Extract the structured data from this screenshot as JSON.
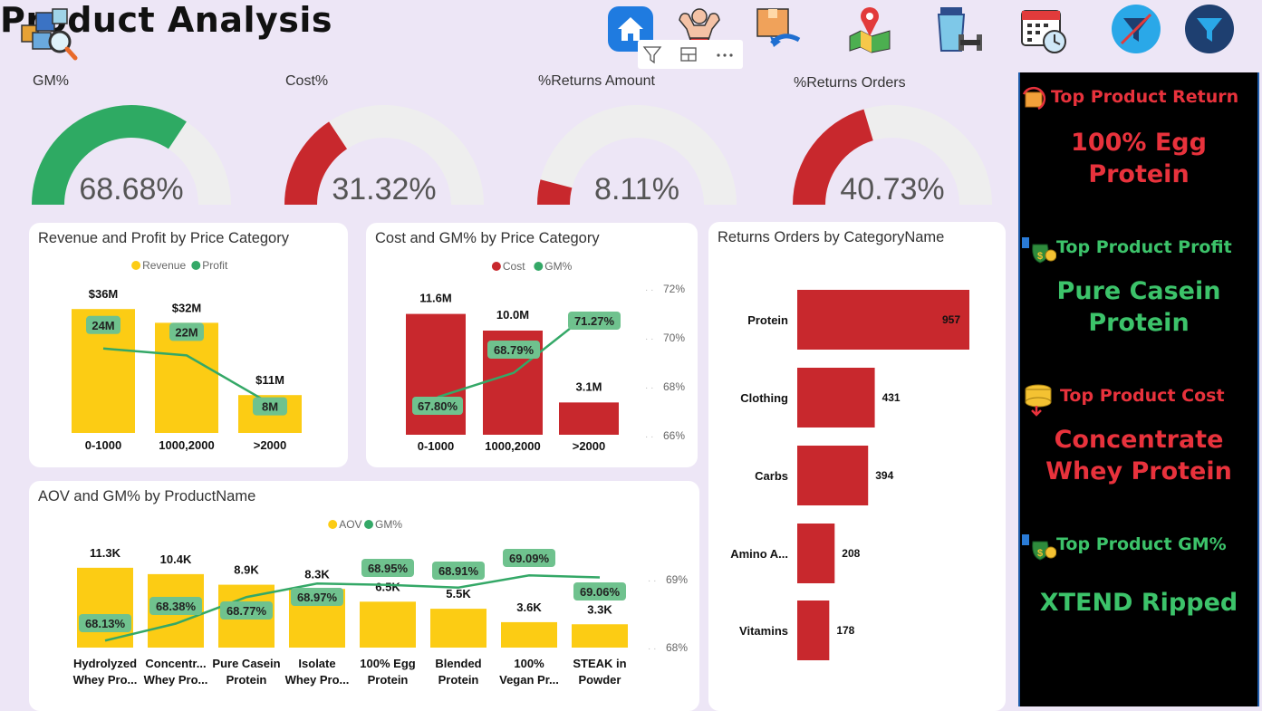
{
  "header": {
    "title": "Product Analysis"
  },
  "nav": [
    "home-icon",
    "bodybuilder-icon",
    "product-return-icon",
    "map-icon",
    "shaker-dumbbell-icon",
    "calendar-clock-icon",
    "clear-filter-icon",
    "filter-icon"
  ],
  "visual_header_icons": [
    "funnel-icon",
    "focus-mode-icon",
    "more-options-icon"
  ],
  "colors": {
    "green": "#2eaa63",
    "red": "#c8282d",
    "yellow": "#fccc14",
    "track": "#eeeeee",
    "line": "#34a867",
    "label_bg": "#6fc28e"
  },
  "kpis": [
    {
      "label": "GM%",
      "value": "68.68%",
      "fraction": 0.6868,
      "color": "#2eaa63"
    },
    {
      "label": "Cost%",
      "value": "31.32%",
      "fraction": 0.3132,
      "color": "#c8282d"
    },
    {
      "label": "%Returns Amount",
      "value": "8.11%",
      "fraction": 0.0811,
      "color": "#c8282d"
    },
    {
      "label": "%Returns Orders",
      "value": "40.73%",
      "fraction": 0.4073,
      "color": "#c8282d"
    }
  ],
  "sidebar": [
    {
      "heading": "Top Product Return",
      "value_lines": [
        "100% Egg",
        "Protein"
      ],
      "heading_color": "#e8323c",
      "value_color": "#e8323c",
      "icon": "box-return-icon"
    },
    {
      "heading": "Top Product Profit",
      "value_lines": [
        "Pure Casein",
        "Protein"
      ],
      "heading_color": "#3cc36a",
      "value_color": "#3cc36a",
      "icon": "money-bag-icon"
    },
    {
      "heading": "Top Product Cost",
      "value_lines": [
        "Concentrate",
        "Whey Protein"
      ],
      "heading_color": "#e8323c",
      "value_color": "#e8323c",
      "icon": "coin-stack-icon"
    },
    {
      "heading": "Top Product GM%",
      "value_lines": [
        "XTEND Ripped"
      ],
      "heading_color": "#3cc36a",
      "value_color": "#3cc36a",
      "icon": "money-bag-icon"
    }
  ],
  "chart_data": [
    {
      "type": "bar",
      "title": "Revenue and Profit by Price Category",
      "categories": [
        "0-1000",
        "1000,2000",
        ">2000"
      ],
      "series": [
        {
          "name": "Revenue",
          "kind": "bar",
          "values": [
            36,
            32,
            11
          ],
          "labels": [
            "$36M",
            "$32M",
            "$11M"
          ],
          "color": "#fccc14"
        },
        {
          "name": "Profit",
          "kind": "line",
          "values": [
            24,
            22,
            8
          ],
          "labels": [
            "24M",
            "22M",
            "8M"
          ],
          "color": "#34a867"
        }
      ],
      "legend": "top-center"
    },
    {
      "type": "bar",
      "title": "Cost and GM% by Price Category",
      "categories": [
        "0-1000",
        "1000,2000",
        ">2000"
      ],
      "series": [
        {
          "name": "Cost",
          "kind": "bar",
          "values": [
            11.6,
            10.0,
            3.1
          ],
          "labels": [
            "11.6M",
            "10.0M",
            "3.1M"
          ],
          "color": "#c8282d"
        },
        {
          "name": "GM%",
          "kind": "line",
          "values": [
            67.8,
            68.79,
            71.27
          ],
          "labels": [
            "67.80%",
            "68.79%",
            "71.27%"
          ],
          "color": "#34a867"
        }
      ],
      "y2_ticks": [
        "72%",
        "70%",
        "68%",
        "66%"
      ],
      "y2_range": [
        66,
        72
      ],
      "legend": "top-center"
    },
    {
      "type": "bar",
      "title": "Returns Orders by CategoryName",
      "orientation": "horizontal",
      "categories": [
        "Protein",
        "Clothing",
        "Carbs",
        "Amino A...",
        "Vitamins"
      ],
      "values": [
        957,
        431,
        394,
        208,
        178
      ],
      "color": "#c8282d"
    },
    {
      "type": "bar",
      "title": "AOV and GM% by ProductName",
      "categories": [
        [
          "Hydrolyzed",
          "Whey Pro..."
        ],
        [
          "Concentr...",
          "Whey Pro..."
        ],
        [
          "Pure Casein",
          "Protein"
        ],
        [
          "Isolate",
          "Whey Pro..."
        ],
        [
          "100% Egg",
          "Protein"
        ],
        [
          "Blended",
          "Protein"
        ],
        [
          "100%",
          "Vegan Pr..."
        ],
        [
          "STEAK in",
          "Powder"
        ]
      ],
      "series": [
        {
          "name": "AOV",
          "kind": "bar",
          "values": [
            11.3,
            10.4,
            8.9,
            8.3,
            6.5,
            5.5,
            3.6,
            3.3
          ],
          "labels": [
            "11.3K",
            "10.4K",
            "8.9K",
            "8.3K",
            "6.5K",
            "5.5K",
            "3.6K",
            "3.3K"
          ],
          "color": "#fccc14"
        },
        {
          "name": "GM%",
          "kind": "line",
          "values": [
            68.13,
            68.38,
            68.77,
            68.97,
            68.95,
            68.91,
            69.09,
            69.06
          ],
          "labels": [
            "68.13%",
            "68.38%",
            "68.77%",
            "68.97%",
            "68.95%",
            "68.91%",
            "69.09%",
            "69.06%"
          ],
          "color": "#34a867"
        }
      ],
      "y2_ticks": [
        "69%",
        "68%"
      ],
      "legend": "top-center"
    }
  ]
}
